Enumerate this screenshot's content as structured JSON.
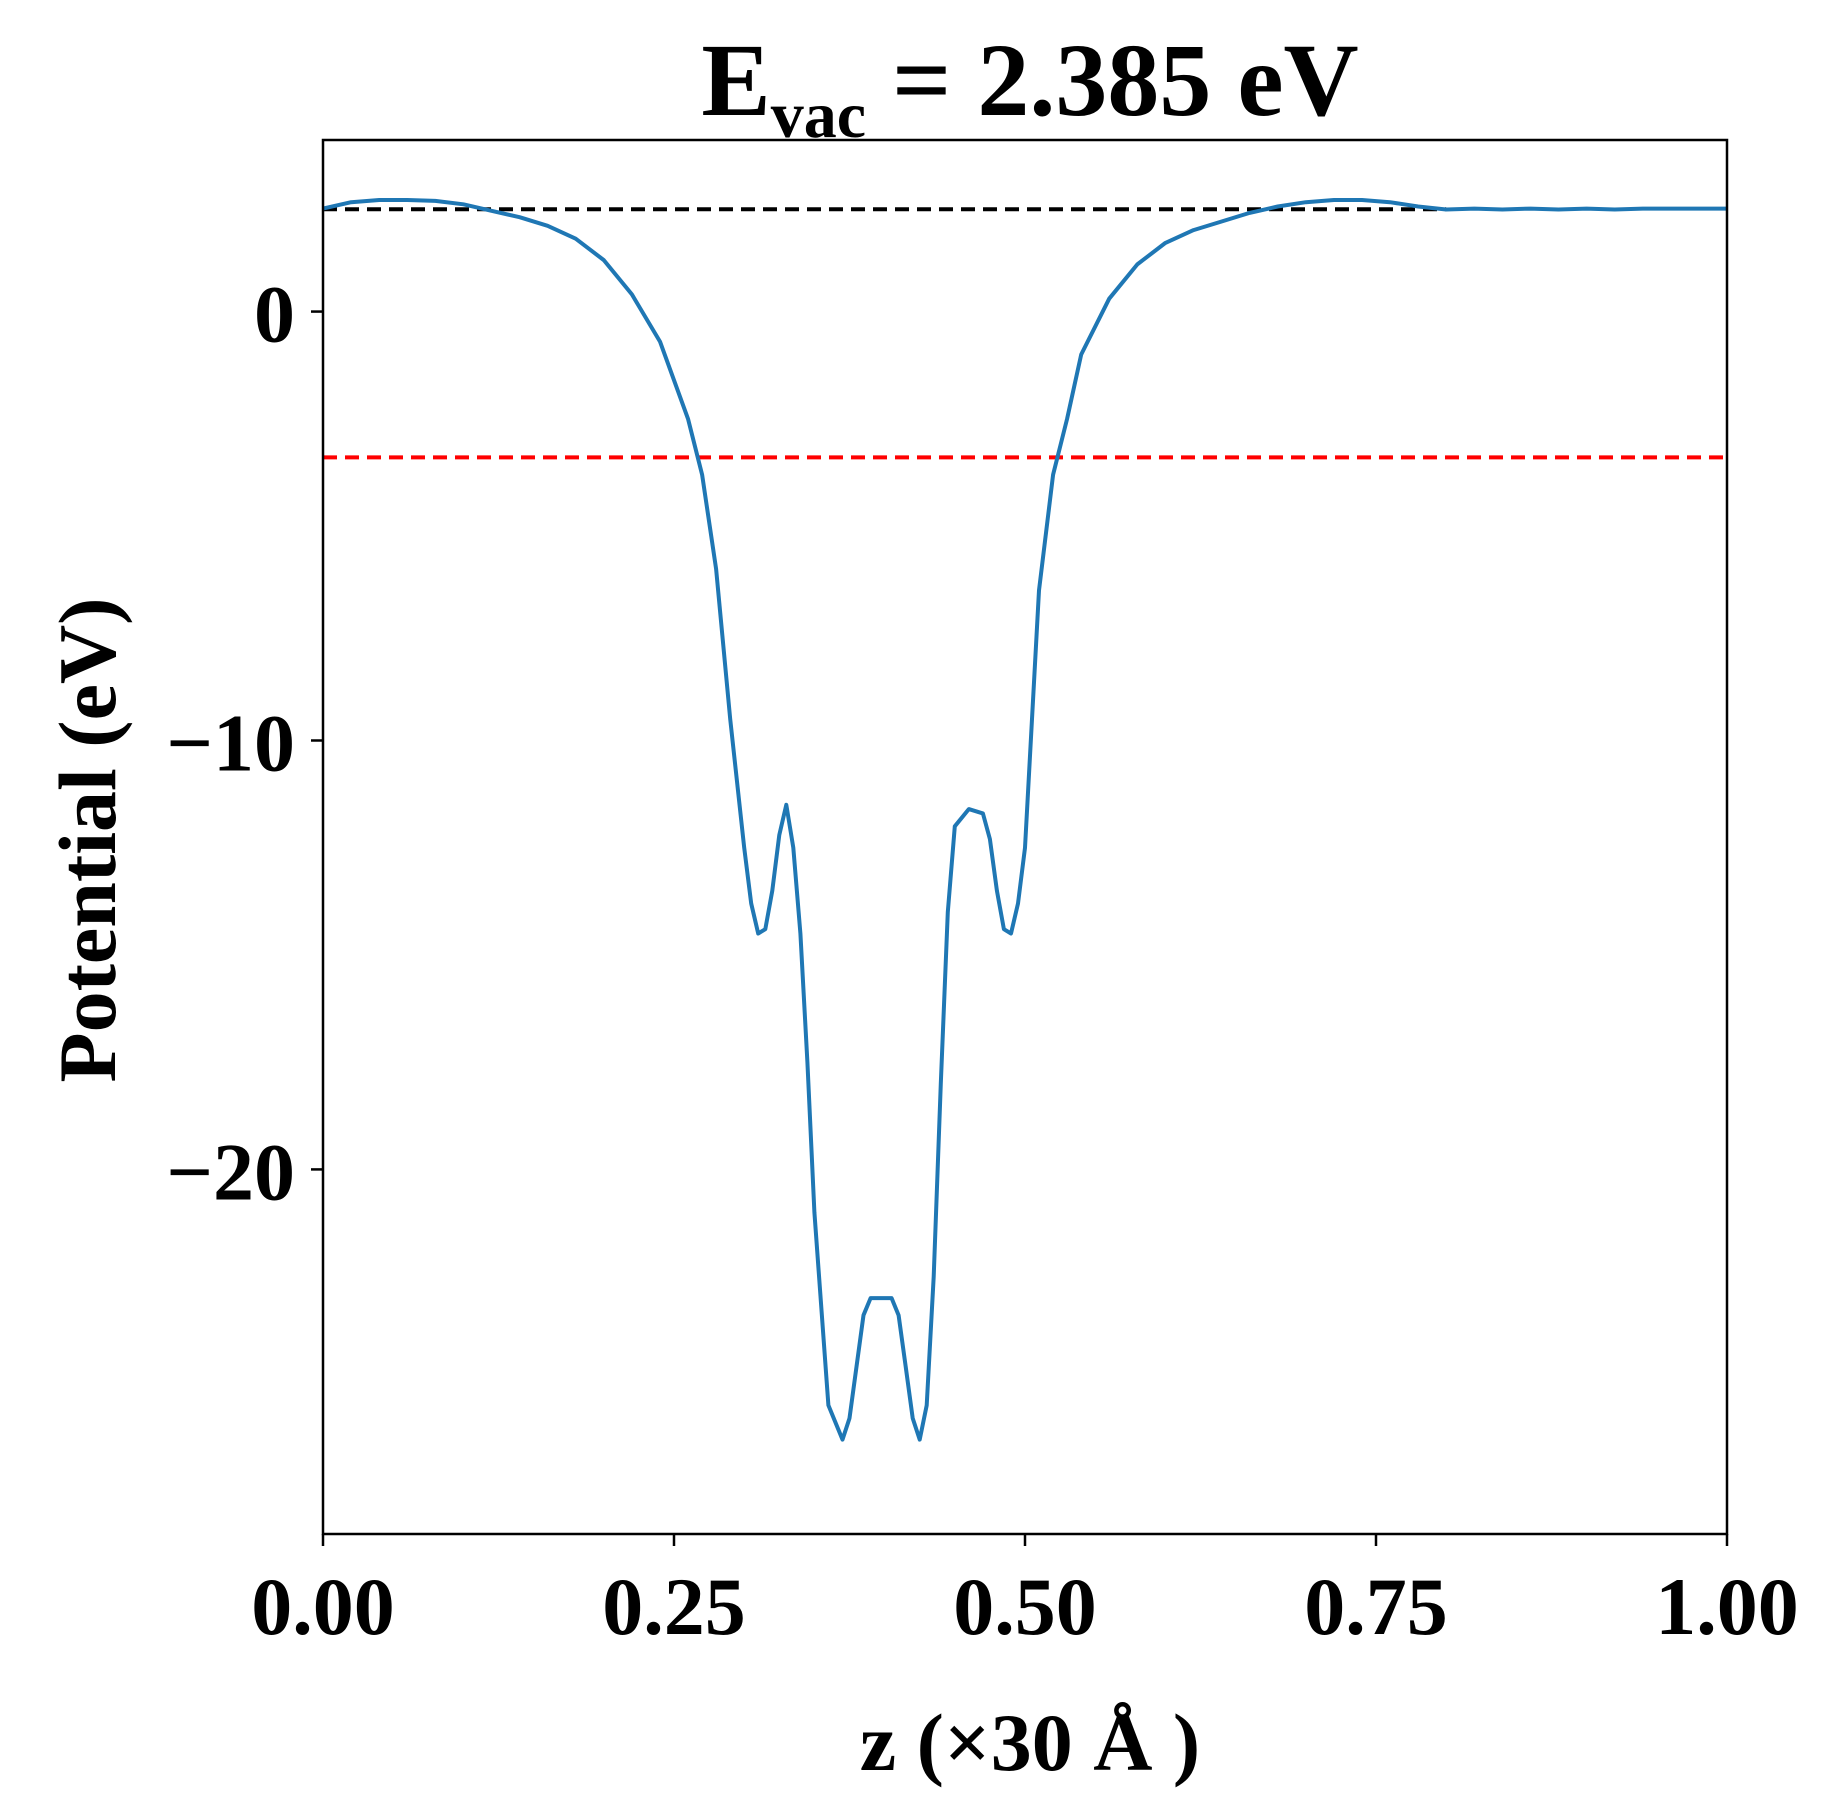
{
  "chart_data": {
    "type": "line",
    "title": {
      "main": "E",
      "subscript": "vac",
      "rest": " = 2.385 eV"
    },
    "xlabel": "z (×30 Å )",
    "ylabel": "Potential (eV)",
    "xlim": [
      0,
      1
    ],
    "ylim": [
      -28.5,
      4
    ],
    "grid": false,
    "x_ticks": [
      {
        "value": 0.0,
        "label": "0.00"
      },
      {
        "value": 0.25,
        "label": "0.25"
      },
      {
        "value": 0.5,
        "label": "0.50"
      },
      {
        "value": 0.75,
        "label": "0.75"
      },
      {
        "value": 1.0,
        "label": "1.00"
      }
    ],
    "y_ticks": [
      {
        "value": 0,
        "label": "0"
      },
      {
        "value": -10,
        "label": "−10"
      },
      {
        "value": -20,
        "label": "−20"
      }
    ],
    "reference_lines": [
      {
        "y": 2.385,
        "color": "#000000",
        "style": "dashed",
        "x_range": [
          0,
          0.8
        ]
      },
      {
        "y": -3.4,
        "color": "#ff0000",
        "style": "dashed",
        "x_range": [
          0,
          1
        ]
      }
    ],
    "series": [
      {
        "color": "#1f77b4",
        "x": [
          0.0,
          0.02,
          0.04,
          0.06,
          0.08,
          0.1,
          0.12,
          0.14,
          0.16,
          0.18,
          0.2,
          0.22,
          0.24,
          0.26,
          0.27,
          0.28,
          0.29,
          0.3,
          0.305,
          0.31,
          0.315,
          0.32,
          0.325,
          0.33,
          0.335,
          0.34,
          0.345,
          0.35,
          0.36,
          0.37,
          0.375,
          0.38,
          0.385,
          0.39,
          0.395,
          0.4,
          0.405,
          0.41,
          0.415,
          0.42,
          0.425,
          0.43,
          0.435,
          0.44,
          0.445,
          0.45,
          0.46,
          0.47,
          0.475,
          0.48,
          0.485,
          0.49,
          0.495,
          0.5,
          0.505,
          0.51,
          0.52,
          0.53,
          0.54,
          0.56,
          0.58,
          0.6,
          0.62,
          0.64,
          0.66,
          0.68,
          0.7,
          0.72,
          0.74,
          0.76,
          0.78,
          0.8,
          0.82,
          0.84,
          0.86,
          0.88,
          0.9,
          0.92,
          0.94,
          0.96,
          0.98,
          1.0
        ],
        "y": [
          2.4,
          2.55,
          2.6,
          2.6,
          2.58,
          2.5,
          2.35,
          2.2,
          2.0,
          1.7,
          1.2,
          0.4,
          -0.7,
          -2.5,
          -3.8,
          -6.0,
          -9.5,
          -12.5,
          -13.8,
          -14.5,
          -14.4,
          -13.5,
          -12.2,
          -11.5,
          -12.5,
          -14.5,
          -17.5,
          -21.0,
          -25.5,
          -26.3,
          -25.8,
          -24.6,
          -23.4,
          -23.0,
          -23.0,
          -23.0,
          -23.0,
          -23.4,
          -24.6,
          -25.8,
          -26.3,
          -25.5,
          -22.5,
          -18.0,
          -14.0,
          -12.0,
          -11.6,
          -11.7,
          -12.3,
          -13.5,
          -14.4,
          -14.5,
          -13.8,
          -12.5,
          -9.5,
          -6.5,
          -3.8,
          -2.5,
          -1.0,
          0.3,
          1.1,
          1.6,
          1.9,
          2.1,
          2.3,
          2.45,
          2.55,
          2.6,
          2.6,
          2.55,
          2.45,
          2.38,
          2.4,
          2.38,
          2.4,
          2.38,
          2.4,
          2.38,
          2.4,
          2.4,
          2.4,
          2.4
        ]
      }
    ]
  }
}
